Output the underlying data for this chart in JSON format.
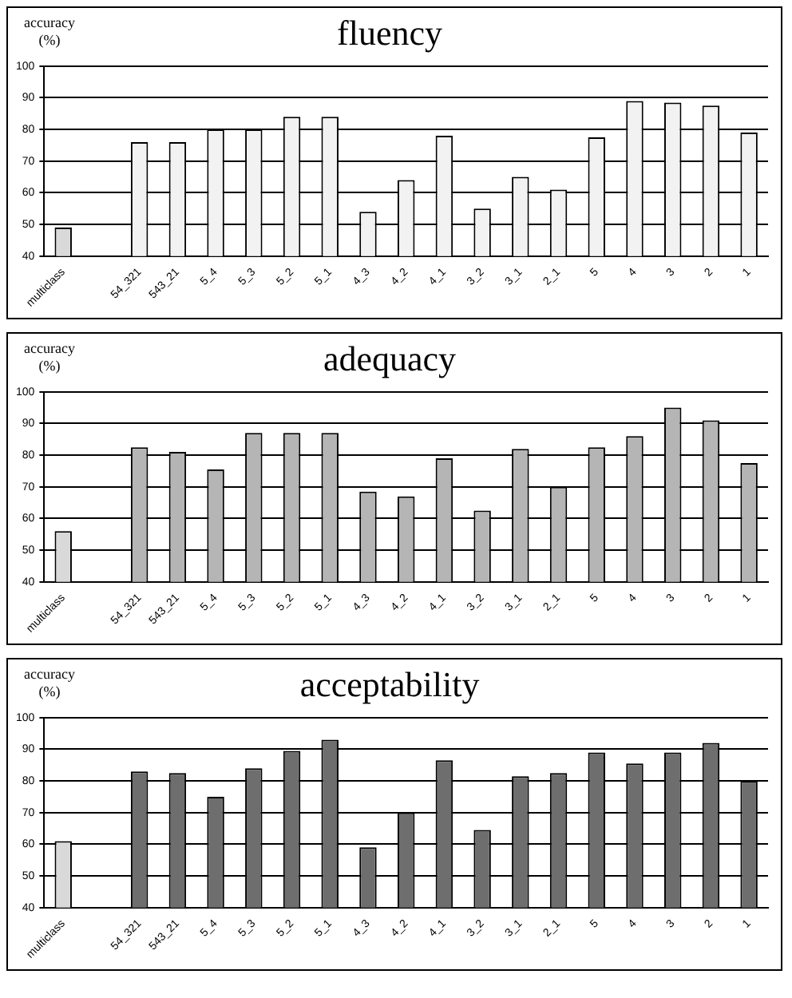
{
  "chart_data": [
    {
      "type": "bar",
      "title": "fluency",
      "ylabel": "accuracy (%)",
      "categories": [
        "multiclass",
        null,
        "54_321",
        "543_21",
        "5_4",
        "5_3",
        "5_2",
        "5_1",
        "4_3",
        "4_2",
        "4_1",
        "3_2",
        "3_1",
        "2_1",
        "5",
        "4",
        "3",
        "2",
        "1"
      ],
      "values": [
        49,
        null,
        76,
        76,
        80,
        80,
        84,
        84,
        54,
        64,
        78,
        55,
        65,
        61,
        77.5,
        89,
        88.5,
        87.5,
        79
      ],
      "colors": [
        "#d9d9d9",
        "#f2f2f2",
        "#f2f2f2",
        "#f2f2f2",
        "#f2f2f2",
        "#f2f2f2",
        "#f2f2f2",
        "#f2f2f2",
        "#f2f2f2",
        "#f2f2f2",
        "#f2f2f2",
        "#f2f2f2",
        "#f2f2f2",
        "#f2f2f2",
        "#f2f2f2",
        "#f2f2f2",
        "#f2f2f2",
        "#f2f2f2",
        "#f2f2f2"
      ],
      "ylim": [
        40,
        100
      ],
      "yticks": [
        40,
        50,
        60,
        70,
        80,
        90,
        100
      ],
      "grid": "y",
      "legend": false
    },
    {
      "type": "bar",
      "title": "adequacy",
      "ylabel": "accuracy (%)",
      "categories": [
        "multiclass",
        null,
        "54_321",
        "543_21",
        "5_4",
        "5_3",
        "5_2",
        "5_1",
        "4_3",
        "4_2",
        "4_1",
        "3_2",
        "3_1",
        "2_1",
        "5",
        "4",
        "3",
        "2",
        "1"
      ],
      "values": [
        56,
        null,
        82.5,
        81,
        75.5,
        87,
        87,
        87,
        68.5,
        67,
        79,
        62.5,
        82,
        70,
        82.5,
        86,
        95,
        91,
        77.5
      ],
      "colors": [
        "#d9d9d9",
        "#b5b5b5",
        "#b5b5b5",
        "#b5b5b5",
        "#b5b5b5",
        "#b5b5b5",
        "#b5b5b5",
        "#b5b5b5",
        "#b5b5b5",
        "#b5b5b5",
        "#b5b5b5",
        "#b5b5b5",
        "#b5b5b5",
        "#b5b5b5",
        "#b5b5b5",
        "#b5b5b5",
        "#b5b5b5",
        "#b5b5b5",
        "#b5b5b5"
      ],
      "ylim": [
        40,
        100
      ],
      "yticks": [
        40,
        50,
        60,
        70,
        80,
        90,
        100
      ],
      "grid": "y",
      "legend": false
    },
    {
      "type": "bar",
      "title": "acceptability",
      "ylabel": "accuracy (%)",
      "categories": [
        "multiclass",
        null,
        "54_321",
        "543_21",
        "5_4",
        "5_3",
        "5_2",
        "5_1",
        "4_3",
        "4_2",
        "4_1",
        "3_2",
        "3_1",
        "2_1",
        "5",
        "4",
        "3",
        "2",
        "1"
      ],
      "values": [
        61,
        null,
        83,
        82.5,
        75,
        84,
        89.5,
        93,
        59,
        70,
        86.5,
        64.5,
        81.5,
        82.5,
        89,
        85.5,
        89,
        92,
        80
      ],
      "colors": [
        "#d9d9d9",
        "#6e6e6e",
        "#6e6e6e",
        "#6e6e6e",
        "#6e6e6e",
        "#6e6e6e",
        "#6e6e6e",
        "#6e6e6e",
        "#6e6e6e",
        "#6e6e6e",
        "#6e6e6e",
        "#6e6e6e",
        "#6e6e6e",
        "#6e6e6e",
        "#6e6e6e",
        "#6e6e6e",
        "#6e6e6e",
        "#6e6e6e",
        "#6e6e6e"
      ],
      "ylim": [
        40,
        100
      ],
      "yticks": [
        40,
        50,
        60,
        70,
        80,
        90,
        100
      ],
      "grid": "y",
      "legend": false
    }
  ]
}
